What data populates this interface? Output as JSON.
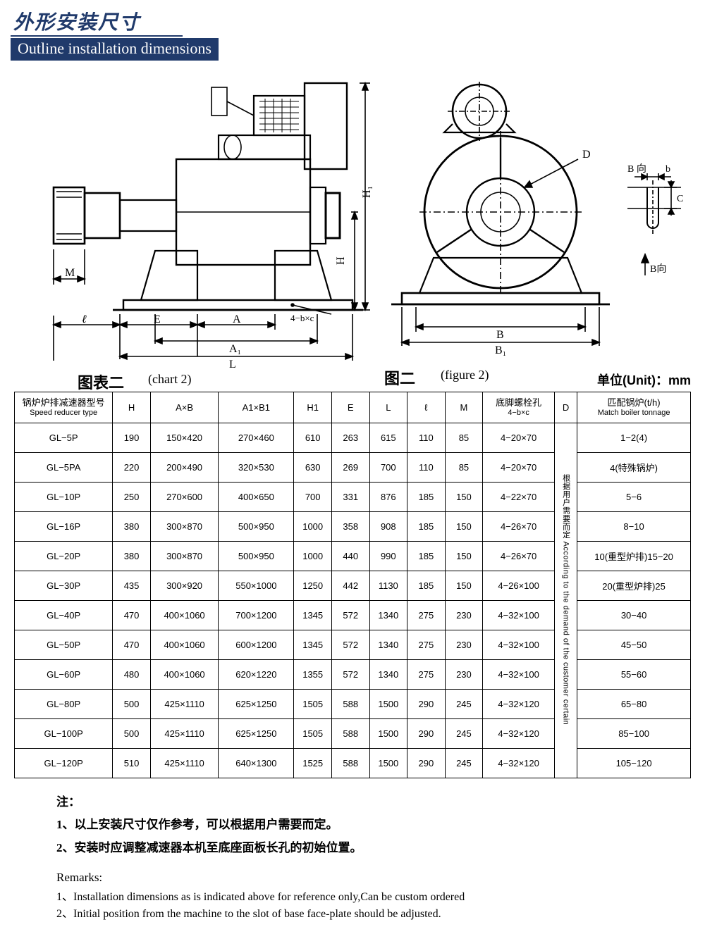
{
  "title_zh": "外形安装尺寸",
  "title_en": "Outline installation dimensions",
  "chart2_label_zh": "图表二",
  "chart2_label_en": "(chart 2)",
  "figure2_label_zh": "图二",
  "figure2_label_en": "(figure 2)",
  "unit_label": "单位(Unit)：mm",
  "diagram_labels": {
    "H": "H",
    "H1": "H₁",
    "M": "M",
    "l": "ℓ",
    "E": "E",
    "A": "A",
    "A1": "A₁",
    "L": "L",
    "bolt": "4−b×c",
    "D": "D",
    "B": "B",
    "B1": "B₁",
    "Bdir": "B 向",
    "b": "b",
    "C": "C",
    "Bdir2": "B向"
  },
  "table": {
    "headers": {
      "type_zh": "锅炉炉排减速器型号",
      "type_en": "Speed reducer type",
      "H": "H",
      "AxB": "A×B",
      "A1xB1": "A1×B1",
      "H1": "H1",
      "E": "E",
      "L": "L",
      "l": "ℓ",
      "M": "M",
      "bolt_zh": "底脚螺栓孔",
      "bolt_sub": "4−b×c",
      "D": "D",
      "match_zh": "匹配锅炉(t/h)",
      "match_en": "Match boiler tonnage"
    },
    "d_merged_text": "根据用户需要而定\nAccording to the demand of the customer certain",
    "rows": [
      {
        "type": "GL−5P",
        "H": "190",
        "AxB": "150×420",
        "A1xB1": "270×460",
        "H1": "610",
        "E": "263",
        "L": "615",
        "l": "110",
        "M": "85",
        "bolt": "4−20×70",
        "match": "1−2(4)"
      },
      {
        "type": "GL−5PA",
        "H": "220",
        "AxB": "200×490",
        "A1xB1": "320×530",
        "H1": "630",
        "E": "269",
        "L": "700",
        "l": "110",
        "M": "85",
        "bolt": "4−20×70",
        "match": "4(特殊锅炉)"
      },
      {
        "type": "GL−10P",
        "H": "250",
        "AxB": "270×600",
        "A1xB1": "400×650",
        "H1": "700",
        "E": "331",
        "L": "876",
        "l": "185",
        "M": "150",
        "bolt": "4−22×70",
        "match": "5−6"
      },
      {
        "type": "GL−16P",
        "H": "380",
        "AxB": "300×870",
        "A1xB1": "500×950",
        "H1": "1000",
        "E": "358",
        "L": "908",
        "l": "185",
        "M": "150",
        "bolt": "4−26×70",
        "match": "8−10"
      },
      {
        "type": "GL−20P",
        "H": "380",
        "AxB": "300×870",
        "A1xB1": "500×950",
        "H1": "1000",
        "E": "440",
        "L": "990",
        "l": "185",
        "M": "150",
        "bolt": "4−26×70",
        "match": "10(重型炉排)15−20"
      },
      {
        "type": "GL−30P",
        "H": "435",
        "AxB": "300×920",
        "A1xB1": "550×1000",
        "H1": "1250",
        "E": "442",
        "L": "1130",
        "l": "185",
        "M": "150",
        "bolt": "4−26×100",
        "match": "20(重型炉排)25"
      },
      {
        "type": "GL−40P",
        "H": "470",
        "AxB": "400×1060",
        "A1xB1": "700×1200",
        "H1": "1345",
        "E": "572",
        "L": "1340",
        "l": "275",
        "M": "230",
        "bolt": "4−32×100",
        "match": "30−40"
      },
      {
        "type": "GL−50P",
        "H": "470",
        "AxB": "400×1060",
        "A1xB1": "600×1200",
        "H1": "1345",
        "E": "572",
        "L": "1340",
        "l": "275",
        "M": "230",
        "bolt": "4−32×100",
        "match": "45−50"
      },
      {
        "type": "GL−60P",
        "H": "480",
        "AxB": "400×1060",
        "A1xB1": "620×1220",
        "H1": "1355",
        "E": "572",
        "L": "1340",
        "l": "275",
        "M": "230",
        "bolt": "4−32×100",
        "match": "55−60"
      },
      {
        "type": "GL−80P",
        "H": "500",
        "AxB": "425×1110",
        "A1xB1": "625×1250",
        "H1": "1505",
        "E": "588",
        "L": "1500",
        "l": "290",
        "M": "245",
        "bolt": "4−32×120",
        "match": "65−80"
      },
      {
        "type": "GL−100P",
        "H": "500",
        "AxB": "425×1110",
        "A1xB1": "625×1250",
        "H1": "1505",
        "E": "588",
        "L": "1500",
        "l": "290",
        "M": "245",
        "bolt": "4−32×120",
        "match": "85−100"
      },
      {
        "type": "GL−120P",
        "H": "510",
        "AxB": "425×1110",
        "A1xB1": "640×1300",
        "H1": "1525",
        "E": "588",
        "L": "1500",
        "l": "290",
        "M": "245",
        "bolt": "4−32×120",
        "match": "105−120"
      }
    ]
  },
  "notes": {
    "zh_head": "注：",
    "zh_1": "1、以上安装尺寸仅作参考，可以根据用户需要而定。",
    "zh_2": "2、安装时应调整减速器本机至底座面板长孔的初始位置。",
    "en_head": "Remarks:",
    "en_1": "1、Installation dimensions as is indicated above for reference only,Can be custom ordered",
    "en_2": "2、Initial position from the machine to the slot of base face-plate should be adjusted."
  },
  "colors": {
    "brand": "#203a6b",
    "line": "#000000",
    "bg": "#ffffff"
  }
}
